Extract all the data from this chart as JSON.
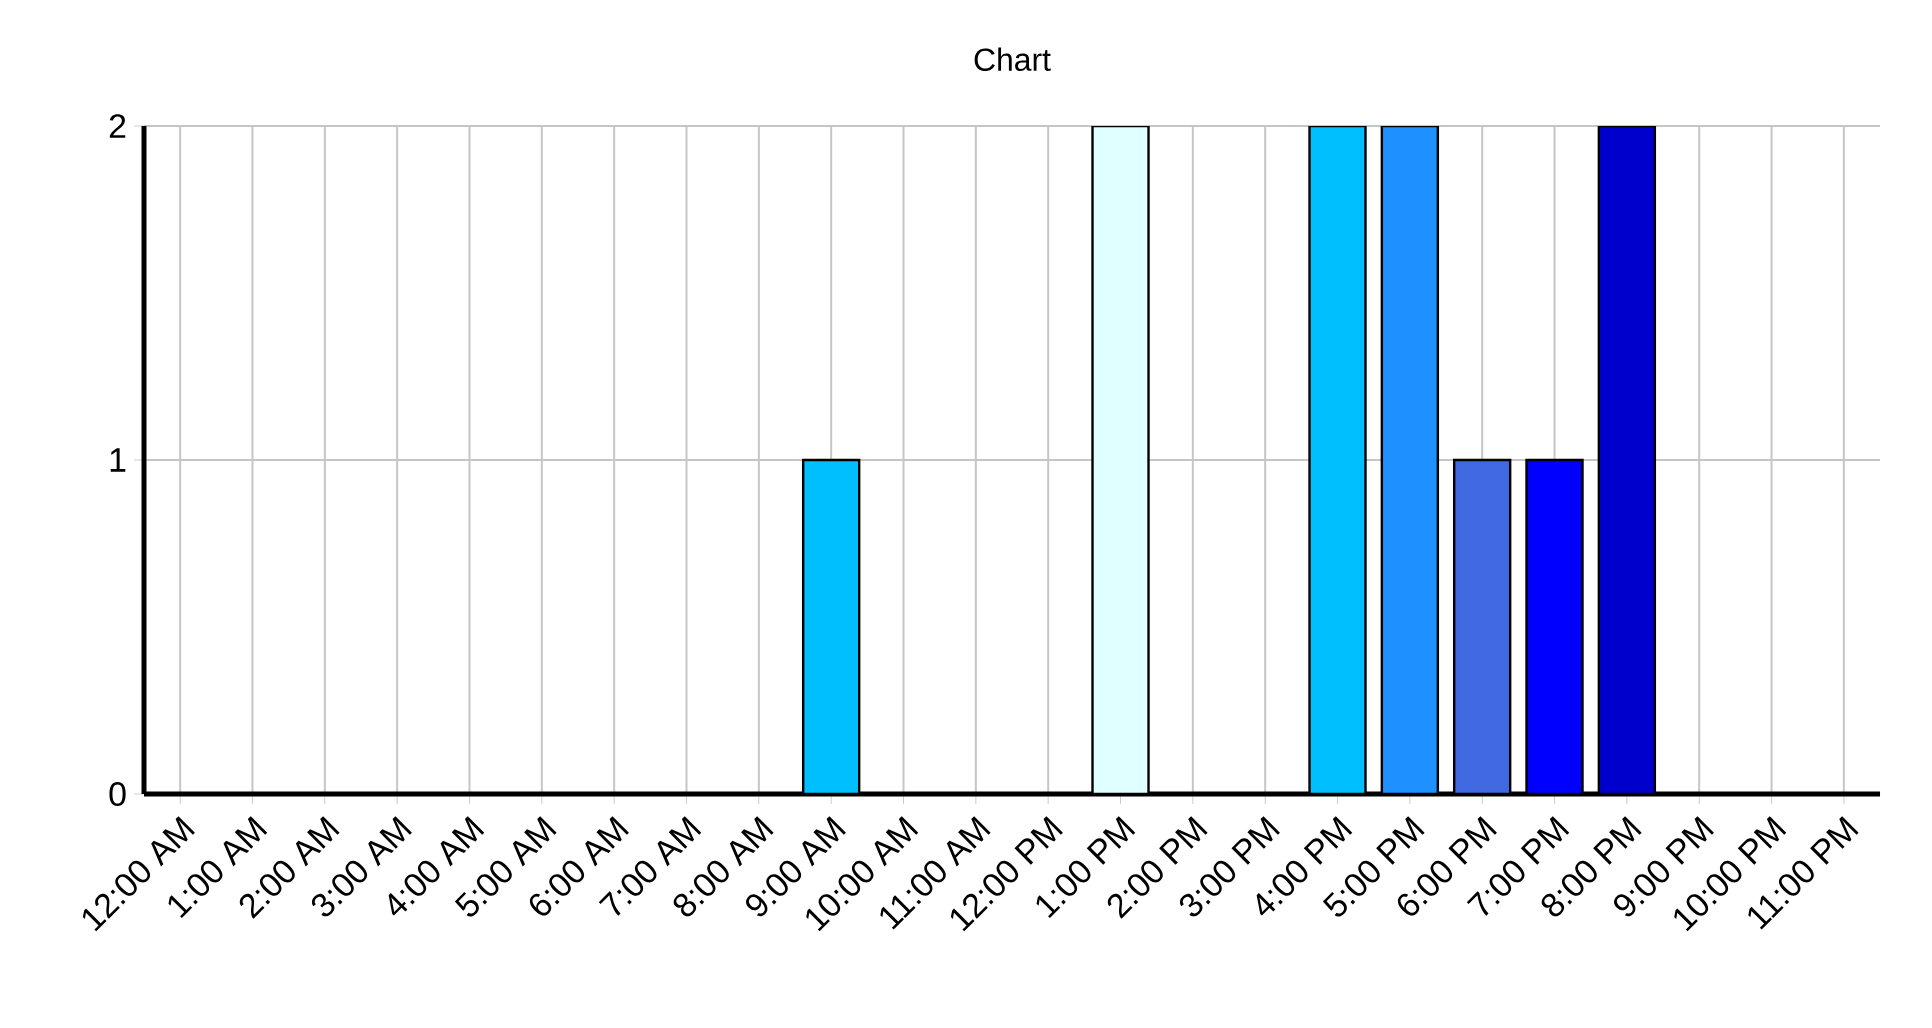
{
  "chart_data": {
    "type": "bar",
    "title": "Chart",
    "categories": [
      "12:00 AM",
      "1:00 AM",
      "2:00 AM",
      "3:00 AM",
      "4:00 AM",
      "5:00 AM",
      "6:00 AM",
      "7:00 AM",
      "8:00 AM",
      "9:00 AM",
      "10:00 AM",
      "11:00 AM",
      "12:00 PM",
      "1:00 PM",
      "2:00 PM",
      "3:00 PM",
      "4:00 PM",
      "5:00 PM",
      "6:00 PM",
      "7:00 PM",
      "8:00 PM",
      "9:00 PM",
      "10:00 PM",
      "11:00 PM"
    ],
    "values": [
      0,
      0,
      0,
      0,
      0,
      0,
      0,
      0,
      0,
      1,
      0,
      0,
      0,
      2,
      0,
      0,
      2,
      2,
      1,
      1,
      2,
      0,
      0,
      0
    ],
    "colors": [
      "#000000",
      "#000000",
      "#000080",
      "#191970",
      "#00008b",
      "#0000b0",
      "#0000e0",
      "#2e4fc0",
      "#1e70e0",
      "#00bfff",
      "#70b8e0",
      "#8fb8c8",
      "#b0e0e6",
      "#e0ffff",
      "#8fb8c8",
      "#70b0e0",
      "#00bfff",
      "#1e90ff",
      "#4169e1",
      "#0000ff",
      "#0000cd",
      "#000080",
      "#191970",
      "#00008b"
    ],
    "ylim": [
      0,
      2
    ],
    "yticks": [
      0,
      1,
      2
    ],
    "grid": true
  }
}
